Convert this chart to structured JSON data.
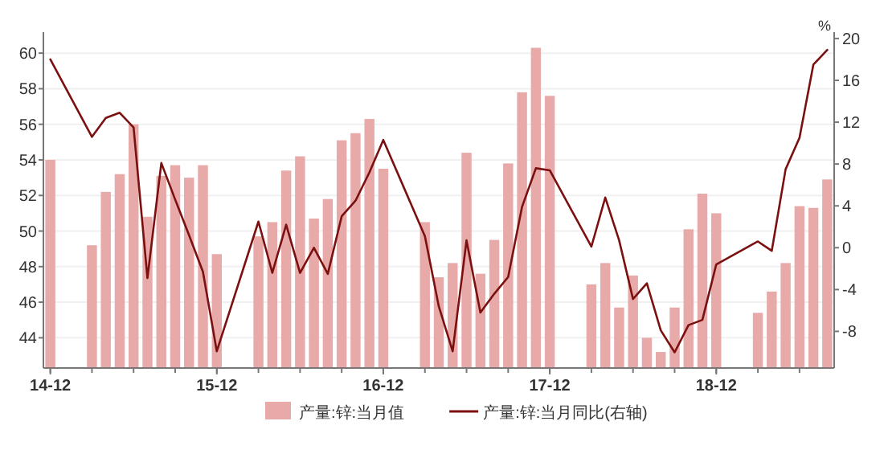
{
  "chart_data": {
    "type": "bar",
    "categories": [
      "14-12",
      null,
      null,
      null,
      null,
      null,
      null,
      null,
      null,
      null,
      null,
      null,
      "15-12",
      null,
      null,
      null,
      null,
      null,
      null,
      null,
      null,
      null,
      null,
      null,
      "16-12",
      null,
      null,
      null,
      null,
      null,
      null,
      null,
      null,
      null,
      null,
      null,
      "17-12",
      null,
      null,
      null,
      null,
      null,
      null,
      null,
      null,
      null,
      null,
      null,
      "18-12",
      null,
      null,
      null,
      null,
      null,
      null,
      null,
      null
    ],
    "series": [
      {
        "name": "产量:锌:当月值",
        "color": "#e8a9a9",
        "values": [
          54.0,
          null,
          null,
          49.2,
          52.2,
          53.2,
          56.0,
          50.8,
          53.1,
          53.7,
          53.0,
          53.7,
          48.7,
          null,
          null,
          49.7,
          50.5,
          53.4,
          54.2,
          50.7,
          51.8,
          55.1,
          55.5,
          56.3,
          53.5,
          null,
          null,
          50.5,
          47.4,
          48.2,
          54.4,
          47.6,
          49.5,
          53.8,
          57.8,
          60.3,
          57.6,
          null,
          null,
          47.0,
          48.2,
          45.7,
          47.5,
          44.0,
          43.2,
          45.7,
          50.1,
          52.1,
          51.0,
          null,
          null,
          45.4,
          46.6,
          48.2,
          51.4,
          51.3,
          52.9
        ]
      },
      {
        "name": "产量:锌:当月同比(右轴)",
        "type": "line",
        "axis": "y2",
        "color": "#7b1010",
        "values": [
          18.0,
          null,
          null,
          10.6,
          12.4,
          12.9,
          11.5,
          -2.9,
          8.1,
          4.6,
          1.2,
          -2.3,
          -9.9,
          null,
          null,
          2.5,
          -2.4,
          2.2,
          -2.4,
          0.0,
          -2.5,
          3.0,
          4.5,
          7.2,
          10.3,
          null,
          null,
          1.1,
          -5.6,
          -9.9,
          0.7,
          -6.2,
          -4.4,
          -2.8,
          3.9,
          7.6,
          7.4,
          null,
          null,
          0.1,
          4.8,
          0.7,
          -4.9,
          -3.4,
          -7.9,
          -10.0,
          -7.4,
          -6.9,
          -1.6,
          null,
          null,
          0.6,
          -0.3,
          7.5,
          10.5,
          17.5,
          18.9
        ]
      }
    ],
    "ylim": [
      42.3,
      61
    ],
    "yticks": [
      44,
      46,
      48,
      50,
      52,
      54,
      56,
      58,
      60
    ],
    "y2lim": [
      -11.5,
      20.3
    ],
    "y2ticks": [
      -8,
      -4,
      0,
      4,
      8,
      12,
      16,
      20
    ],
    "y2label": "%",
    "grid": "y",
    "legend": "bottom"
  }
}
